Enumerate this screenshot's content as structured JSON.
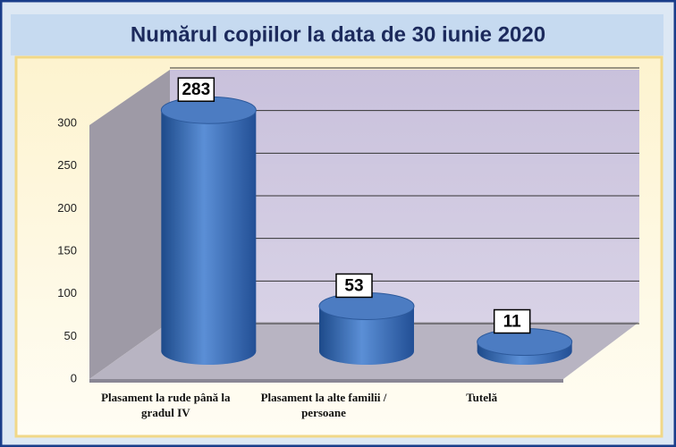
{
  "chart_data": {
    "type": "bar3d",
    "title": "Numărul copiilor la data de  30 iunie 2020",
    "categories": [
      "Plasament la rude până la gradul IV",
      "Plasament la alte familii / persoane",
      "Tutelă"
    ],
    "values": [
      283,
      53,
      11
    ],
    "color": "#3a6fb8",
    "ylim": [
      0,
      300
    ],
    "yticks": [
      0,
      50,
      100,
      150,
      200,
      250,
      300
    ],
    "grid": true
  }
}
